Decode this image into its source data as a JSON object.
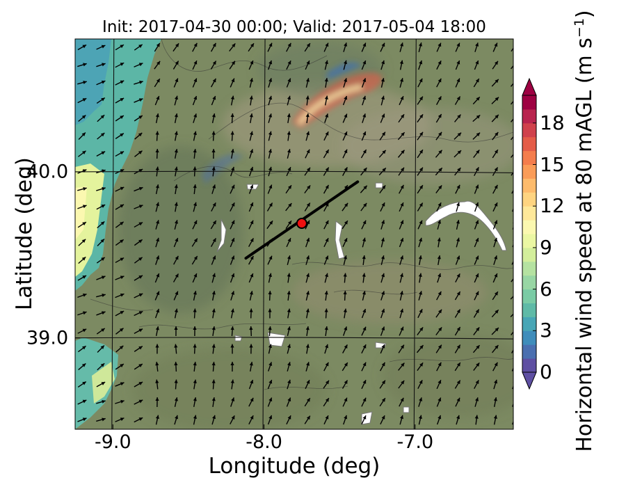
{
  "title": "Init: 2017-04-30 00:00; Valid: 2017-05-04 18:00",
  "axes": {
    "xlabel": "Longitude (deg)",
    "ylabel": "Latitude (deg)",
    "xticks": [
      {
        "value": -9.0,
        "label": "-9.0"
      },
      {
        "value": -8.0,
        "label": "-8.0"
      },
      {
        "value": -7.0,
        "label": "-7.0"
      }
    ],
    "yticks": [
      {
        "value": 40.0,
        "label": "40.0"
      },
      {
        "value": 39.0,
        "label": "39.0"
      }
    ],
    "xlim": [
      -9.25,
      -6.35
    ],
    "ylim": [
      38.45,
      40.8
    ]
  },
  "colorbar": {
    "label_main": "Horizontal wind speed at 80 mAGL (m s",
    "label_sup": "−1",
    "label_close": ")",
    "min": 0,
    "max": 20,
    "extend": "both",
    "ticks": [
      {
        "value": 0,
        "label": "0"
      },
      {
        "value": 3,
        "label": "3"
      },
      {
        "value": 6,
        "label": "6"
      },
      {
        "value": 9,
        "label": "9"
      },
      {
        "value": 12,
        "label": "12"
      },
      {
        "value": 15,
        "label": "15"
      },
      {
        "value": 18,
        "label": "18"
      }
    ],
    "colors": [
      "#5e4fa2",
      "#4a6fb0",
      "#3f8dbb",
      "#48a6b6",
      "#5fbaa7",
      "#7acba5",
      "#98d6a4",
      "#b5e2a1",
      "#d3ee9b",
      "#ebf7a3",
      "#fbf8b0",
      "#fee89a",
      "#fed481",
      "#fdbb6c",
      "#fa9c58",
      "#f47d4d",
      "#e45c48",
      "#d0414c",
      "#b8244e",
      "#9e0142"
    ],
    "over_color": "#9e0142",
    "under_color": "#5e4fa2"
  },
  "map_colors": {
    "land_base": "#7c8a62",
    "ocean": "#5bb5a5"
  },
  "transect": {
    "start": [
      -8.12,
      39.48
    ],
    "end": [
      -7.38,
      39.94
    ]
  },
  "site": {
    "lon": -7.75,
    "lat": 39.69,
    "color": "#ee1111"
  }
}
